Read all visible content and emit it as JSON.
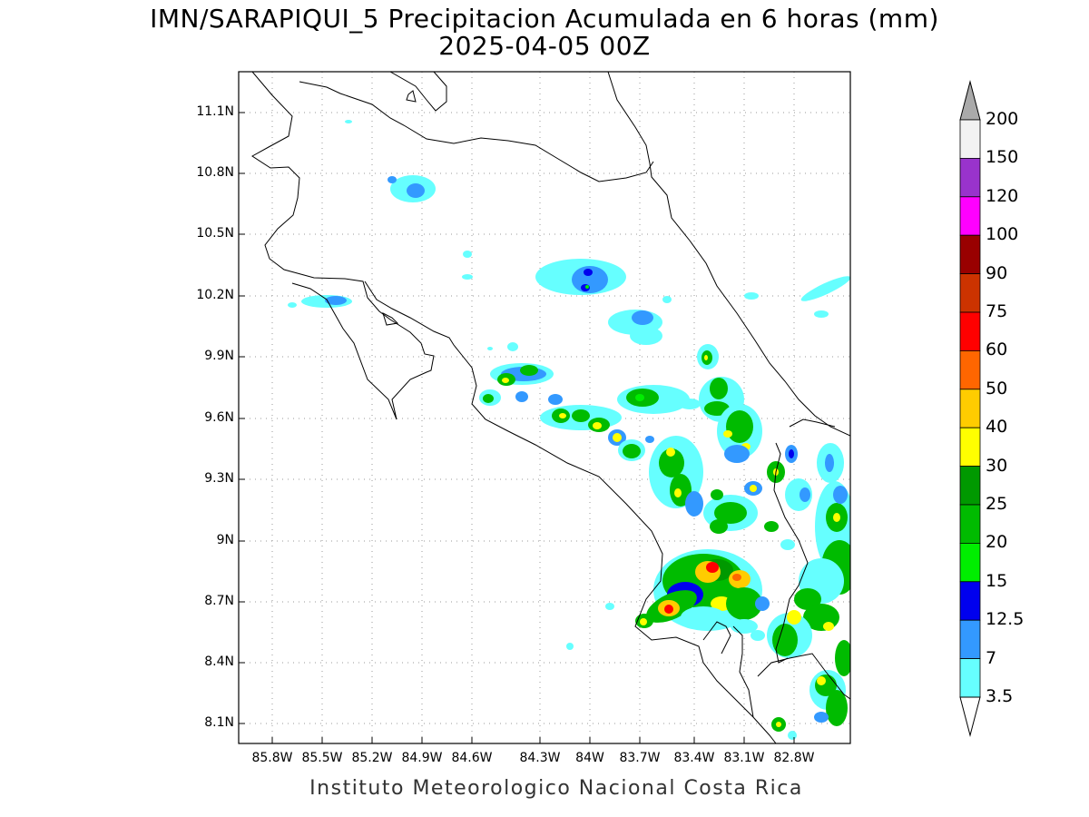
{
  "title": {
    "line1": "IMN/SARAPIQUI_5 Precipitacion Acumulada en 6 horas (mm)",
    "line2": "2025-04-05 00Z"
  },
  "lat_ticks": [
    "11.1N",
    "10.8N",
    "10.5N",
    "10.2N",
    "9.9N",
    "9.6N",
    "9.3N",
    "9N",
    "8.7N",
    "8.4N",
    "8.1N"
  ],
  "lon_ticks": [
    "85.8W",
    "85.5W",
    "85.2W",
    "84.9W",
    "84.6W",
    "84.3W",
    "84W",
    "83.7W",
    "83.4W",
    "83.1W",
    "82.8W"
  ],
  "colorbar": {
    "labels": [
      "200",
      "150",
      "120",
      "100",
      "90",
      "75",
      "60",
      "50",
      "40",
      "30",
      "25",
      "20",
      "15",
      "12.5",
      "7",
      "3.5"
    ],
    "colors": [
      "#f2f2f2",
      "#9933cc",
      "#ff00ff",
      "#990000",
      "#cc3300",
      "#ff0000",
      "#ff6600",
      "#ffcc00",
      "#ffff00",
      "#009900",
      "#00bb00",
      "#00ee00",
      "#0000ee",
      "#3399ff",
      "#66ffff"
    ],
    "over_color": "#aaaaaa"
  },
  "credit": "Instituto Meteorologico Nacional Costa Rica"
}
